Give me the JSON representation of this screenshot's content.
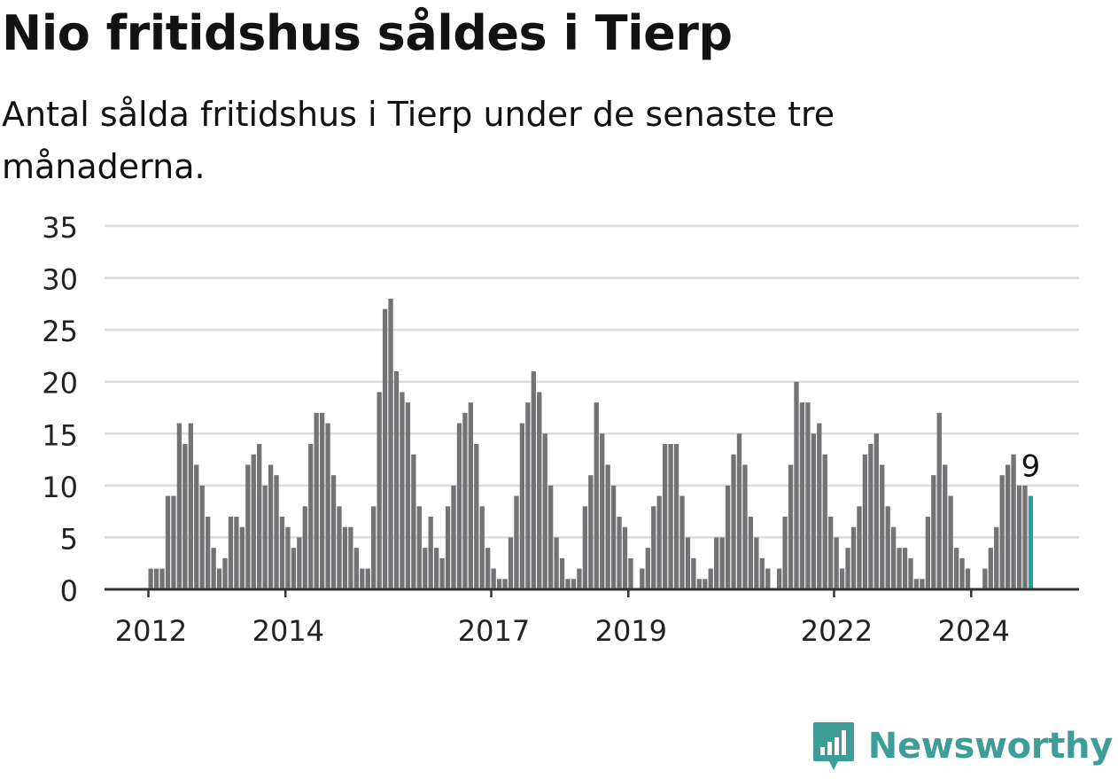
{
  "header": {
    "title": "Nio fritidshus såldes i Tierp",
    "subtitle": "Antal sålda fritidshus i Tierp under de senaste tre månaderna."
  },
  "brand": {
    "name": "Newsworthy",
    "icon": "newsworthy-logo-icon"
  },
  "colors": {
    "bar": "#737275",
    "highlight": "#2a9d97",
    "grid": "#dcdcdc",
    "axis": "#333333",
    "brand": "#3d9e97"
  },
  "chart_data": {
    "type": "bar",
    "title": "Nio fritidshus såldes i Tierp",
    "subtitle": "Antal sålda fritidshus i Tierp under de senaste tre månaderna.",
    "xlabel": "",
    "ylabel": "",
    "ylim": [
      0,
      35
    ],
    "yticks": [
      0,
      5,
      10,
      15,
      20,
      25,
      30,
      35
    ],
    "xtick_labels": [
      "2012",
      "2014",
      "2017",
      "2019",
      "2022",
      "2024"
    ],
    "grid": true,
    "start": "2012-01",
    "frequency": "monthly",
    "values": [
      2,
      2,
      2,
      9,
      9,
      16,
      14,
      16,
      12,
      10,
      7,
      4,
      2,
      3,
      7,
      7,
      6,
      12,
      13,
      14,
      10,
      12,
      11,
      7,
      6,
      4,
      5,
      8,
      14,
      17,
      17,
      16,
      11,
      8,
      6,
      6,
      4,
      2,
      2,
      8,
      19,
      27,
      28,
      21,
      19,
      18,
      13,
      8,
      4,
      7,
      4,
      3,
      8,
      10,
      16,
      17,
      18,
      14,
      8,
      4,
      2,
      1,
      1,
      5,
      9,
      16,
      18,
      21,
      19,
      15,
      10,
      5,
      3,
      1,
      1,
      2,
      8,
      11,
      18,
      15,
      12,
      10,
      7,
      6,
      3,
      0,
      2,
      4,
      8,
      9,
      14,
      14,
      14,
      9,
      5,
      3,
      1,
      1,
      2,
      5,
      5,
      10,
      13,
      15,
      12,
      7,
      5,
      3,
      2,
      0,
      2,
      7,
      12,
      20,
      18,
      18,
      15,
      16,
      13,
      7,
      5,
      2,
      4,
      6,
      8,
      13,
      14,
      15,
      12,
      8,
      6,
      4,
      4,
      3,
      1,
      1,
      7,
      11,
      17,
      12,
      9,
      4,
      3,
      2,
      0,
      0,
      2,
      4,
      6,
      11,
      12,
      13,
      10,
      10,
      9
    ],
    "highlight_last": true,
    "annotation": "9"
  }
}
